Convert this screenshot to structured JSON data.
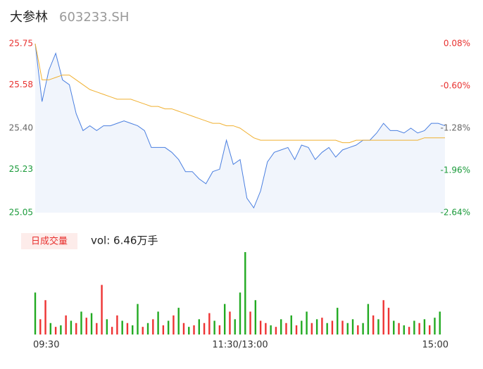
{
  "chart_data": [
    {
      "type": "line",
      "title": "大参林",
      "subtitle": "603233.SH",
      "x": [
        0,
        4,
        8,
        12,
        16,
        20,
        24,
        28,
        32,
        36,
        40,
        44,
        48,
        52,
        56,
        60,
        64,
        68,
        72,
        76,
        80,
        84,
        88,
        92,
        96,
        100,
        104,
        108,
        112,
        116,
        120,
        124,
        128,
        132,
        136,
        140,
        144,
        148,
        152,
        156,
        160,
        164,
        168,
        172,
        176,
        180,
        184,
        188,
        192,
        196,
        200,
        204,
        208,
        212,
        216,
        220,
        224,
        228,
        232,
        236,
        240
      ],
      "xlim": [
        0,
        240
      ],
      "ylim": [
        25.05,
        25.75
      ],
      "yticks": [
        25.75,
        25.58,
        {
          "value": 25.4,
          "label": "25.40"
        },
        25.23,
        25.05
      ],
      "ytick_colors": [
        "#e8312f",
        "#e8312f",
        "#666666",
        "#1a9a3a",
        "#1a9a3a"
      ],
      "y2lim": [
        -2.64,
        0.08
      ],
      "y2ticks": [
        {
          "value": 0.08,
          "label": "0.08%"
        },
        {
          "value": -0.6,
          "label": "-0.60%"
        },
        {
          "value": -1.28,
          "label": "-1.28%"
        },
        {
          "value": -1.96,
          "label": "-1.96%"
        },
        {
          "value": -2.64,
          "label": "-2.64%"
        }
      ],
      "y2tick_colors": [
        "#e8312f",
        "#e8312f",
        "#666666",
        "#1a9a3a",
        "#1a9a3a"
      ],
      "series": [
        {
          "color": "#4a7fe0",
          "area_color": "#f1f5fc",
          "values": [
            25.75,
            25.51,
            25.64,
            25.71,
            25.6,
            25.58,
            25.46,
            25.39,
            25.41,
            25.39,
            25.41,
            25.41,
            25.42,
            25.43,
            25.42,
            25.41,
            25.39,
            25.32,
            25.32,
            25.32,
            25.3,
            25.27,
            25.22,
            25.22,
            25.19,
            25.17,
            25.22,
            25.23,
            25.35,
            25.25,
            25.27,
            25.11,
            25.07,
            25.14,
            25.26,
            25.3,
            25.31,
            25.32,
            25.27,
            25.33,
            25.32,
            25.27,
            25.3,
            25.32,
            25.28,
            25.31,
            25.32,
            25.33,
            25.35,
            25.35,
            25.38,
            25.42,
            25.39,
            25.39,
            25.38,
            25.4,
            25.38,
            25.39,
            25.42,
            25.42,
            25.41
          ]
        },
        {
          "color": "#f0b030",
          "values": [
            25.75,
            25.6,
            25.6,
            25.61,
            25.62,
            25.62,
            25.6,
            25.58,
            25.56,
            25.55,
            25.54,
            25.53,
            25.52,
            25.52,
            25.52,
            25.51,
            25.5,
            25.49,
            25.49,
            25.48,
            25.48,
            25.47,
            25.46,
            25.45,
            25.44,
            25.43,
            25.42,
            25.42,
            25.41,
            25.41,
            25.4,
            25.38,
            25.36,
            25.35,
            25.35,
            25.35,
            25.35,
            25.35,
            25.35,
            25.35,
            25.35,
            25.35,
            25.35,
            25.35,
            25.35,
            25.34,
            25.34,
            25.35,
            25.35,
            25.35,
            25.35,
            25.35,
            25.35,
            25.35,
            25.35,
            25.35,
            25.35,
            25.36,
            25.36,
            25.36,
            25.36
          ]
        }
      ]
    },
    {
      "type": "bar",
      "title": "日成交量",
      "annotation": "vol: 6.46万手",
      "x": [
        0,
        3,
        6,
        9,
        12,
        15,
        18,
        21,
        24,
        27,
        30,
        33,
        36,
        39,
        42,
        45,
        48,
        51,
        54,
        57,
        60,
        63,
        66,
        69,
        72,
        75,
        78,
        81,
        84,
        87,
        90,
        93,
        96,
        99,
        102,
        105,
        108,
        111,
        114,
        117,
        120,
        123,
        126,
        129,
        132,
        135,
        138,
        141,
        144,
        147,
        150,
        153,
        156,
        159,
        162,
        165,
        168,
        171,
        174,
        177,
        180,
        183,
        186,
        189,
        192,
        195,
        198,
        201,
        204,
        207,
        210,
        213,
        216,
        219,
        222,
        225,
        228,
        231,
        234,
        237
      ],
      "xlim": [
        0,
        240
      ],
      "xticks": [
        {
          "value": 0,
          "label": "09:30"
        },
        {
          "value": 120,
          "label": "11:30/13:00"
        },
        {
          "value": 240,
          "label": "15:00"
        }
      ],
      "ylim": [
        0,
        120
      ],
      "values": [
        55,
        20,
        45,
        15,
        10,
        12,
        25,
        18,
        15,
        30,
        22,
        28,
        15,
        65,
        20,
        10,
        25,
        18,
        15,
        12,
        40,
        10,
        15,
        20,
        30,
        12,
        18,
        25,
        35,
        15,
        10,
        12,
        20,
        15,
        28,
        18,
        12,
        40,
        30,
        20,
        55,
        108,
        30,
        45,
        18,
        15,
        12,
        10,
        20,
        15,
        25,
        12,
        18,
        30,
        15,
        20,
        22,
        15,
        18,
        35,
        18,
        15,
        20,
        12,
        15,
        40,
        25,
        20,
        45,
        35,
        18,
        15,
        12,
        10,
        18,
        15,
        20,
        12,
        22,
        30
      ],
      "colors": [
        "#2a2",
        "#e33",
        "#e33",
        "#2a2",
        "#e33",
        "#2a2",
        "#e33",
        "#2a2",
        "#e33",
        "#2a2",
        "#e33",
        "#2a2",
        "#e33",
        "#e33",
        "#2a2",
        "#e33",
        "#e33",
        "#2a2",
        "#e33",
        "#2a2",
        "#2a2",
        "#e33",
        "#2a2",
        "#e33",
        "#2a2",
        "#e33",
        "#2a2",
        "#e33",
        "#2a2",
        "#e33",
        "#2a2",
        "#e33",
        "#2a2",
        "#e33",
        "#e33",
        "#2a2",
        "#e33",
        "#2a2",
        "#e33",
        "#2a2",
        "#2a2",
        "#2a2",
        "#e33",
        "#2a2",
        "#e33",
        "#e33",
        "#2a2",
        "#e33",
        "#2a2",
        "#e33",
        "#2a2",
        "#e33",
        "#2a2",
        "#2a2",
        "#e33",
        "#2a2",
        "#e33",
        "#2a2",
        "#e33",
        "#2a2",
        "#e33",
        "#2a2",
        "#2a2",
        "#e33",
        "#2a2",
        "#2a2",
        "#e33",
        "#2a2",
        "#e33",
        "#e33",
        "#2a2",
        "#e33",
        "#2a2",
        "#e33",
        "#2a2",
        "#e33",
        "#2a2",
        "#e33",
        "#2a2",
        "#2a2"
      ]
    }
  ]
}
